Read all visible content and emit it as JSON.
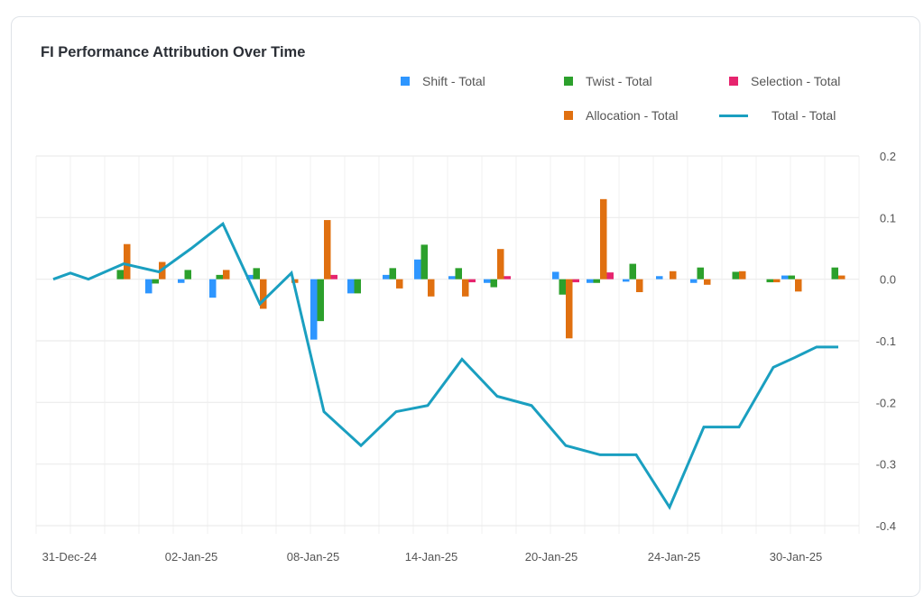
{
  "chart_data": {
    "type": "bar+line",
    "title": "FI Performance Attribution Over Time",
    "legend_position": "top-right",
    "grid": true,
    "y_axis_position": "right",
    "ylim": [
      -0.4,
      0.2
    ],
    "yticks": [
      "0.2",
      "0.1",
      "0.0",
      "-0.1",
      "-0.2",
      "-0.3",
      "-0.4"
    ],
    "ytick_values": [
      0.2,
      0.1,
      0.0,
      -0.1,
      -0.2,
      -0.3,
      -0.4
    ],
    "xticks": [
      "31-Dec-24",
      "02-Jan-25",
      "08-Jan-25",
      "14-Jan-25",
      "20-Jan-25",
      "24-Jan-25",
      "30-Jan-25"
    ],
    "series": [
      {
        "name": "Shift - Total",
        "type": "bar",
        "color": "#2e96ff",
        "values": [
          0,
          0,
          0,
          0,
          -0.023,
          -0.006,
          -0.03,
          0.007,
          0,
          -0.098,
          -0.023,
          0.007,
          0.032,
          0.005,
          -0.006,
          0,
          0.012,
          -0.006,
          -0.004,
          0.005,
          -0.006,
          0,
          0,
          0.006,
          0,
          0
        ]
      },
      {
        "name": "Twist - Total",
        "type": "bar",
        "color": "#2ca02c",
        "values": [
          0,
          0,
          0,
          0.015,
          -0.007,
          0.015,
          0.007,
          0.018,
          0,
          -0.068,
          -0.023,
          0.018,
          0.056,
          0.018,
          -0.013,
          0,
          -0.025,
          -0.006,
          0.025,
          0,
          0.019,
          0.012,
          -0.005,
          0.006,
          0,
          0.019
        ]
      },
      {
        "name": "Allocation - Total",
        "type": "bar",
        "color": "#e07010",
        "values": [
          0,
          0,
          0,
          0.057,
          0.028,
          0,
          0.015,
          -0.048,
          -0.006,
          0.096,
          0,
          -0.015,
          -0.028,
          -0.028,
          0.049,
          0,
          -0.096,
          0.13,
          -0.021,
          0.013,
          -0.009,
          0.013,
          -0.005,
          -0.02,
          0,
          0.006
        ]
      },
      {
        "name": "Selection - Total",
        "type": "bar",
        "color": "#e6246e",
        "values": [
          0,
          0,
          0,
          0,
          0,
          0,
          0,
          0,
          0,
          0.007,
          0,
          0,
          0,
          -0.005,
          0.005,
          0,
          -0.005,
          0.011,
          0,
          0,
          0,
          0,
          0,
          0,
          0,
          0
        ]
      },
      {
        "name": "Total - Total",
        "type": "line",
        "color": "#1a9fc0",
        "values": [
          0.0,
          0.01,
          0.0,
          0.025,
          0.012,
          0.05,
          0.09,
          -0.04,
          0.01,
          -0.215,
          -0.27,
          -0.215,
          -0.205,
          -0.13,
          -0.19,
          -0.205,
          -0.27,
          -0.285,
          -0.285,
          -0.37,
          -0.24,
          -0.24,
          -0.143,
          -0.127,
          -0.11,
          -0.11
        ]
      }
    ]
  }
}
